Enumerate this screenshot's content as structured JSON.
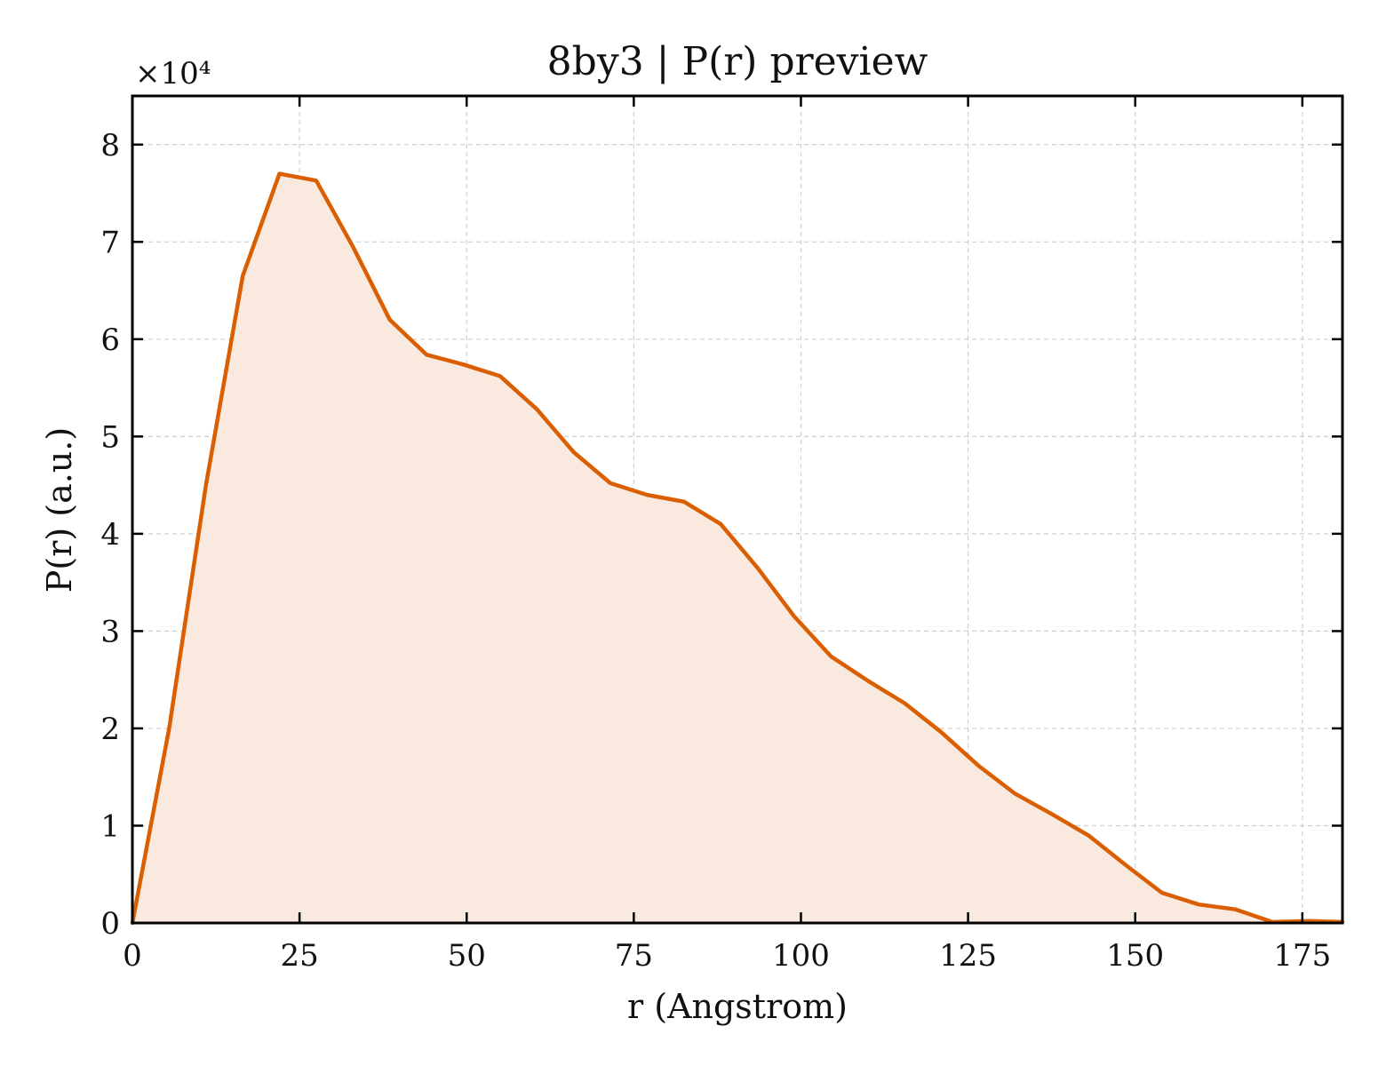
{
  "chart_data": {
    "type": "area",
    "title": "8by3 | P(r) preview",
    "xlabel": "r (Angstrom)",
    "ylabel": "P(r) (a.u.)",
    "y_offset_text": "×10⁴",
    "y_scale": 10000,
    "xlim": [
      0,
      181
    ],
    "ylim": [
      0,
      85000
    ],
    "x_ticks": [
      0,
      25,
      50,
      75,
      100,
      125,
      150,
      175
    ],
    "y_ticks": [
      0,
      1,
      2,
      3,
      4,
      5,
      6,
      7,
      8
    ],
    "grid": true,
    "line_color": "#d95f02",
    "fill_color": "#fae9de",
    "series": [
      {
        "x": [
          0,
          5.5,
          11,
          16.5,
          22,
          27.5,
          33,
          38.5,
          44,
          49.5,
          55,
          60.5,
          66,
          71.5,
          77,
          82.5,
          88,
          93.5,
          99,
          104.5,
          110,
          115.5,
          121,
          126.5,
          132,
          137.5,
          143,
          148.5,
          154,
          159.5,
          165,
          170.5,
          176,
          181
        ],
        "y": [
          0,
          20000,
          45000,
          66500,
          77000,
          76300,
          69500,
          62000,
          58400,
          57400,
          56200,
          52800,
          48400,
          45200,
          44000,
          43300,
          41000,
          36500,
          31500,
          27400,
          24900,
          22600,
          19600,
          16200,
          13300,
          11200,
          9000,
          6000,
          3100,
          1900,
          1400,
          100,
          200,
          100
        ]
      }
    ]
  }
}
